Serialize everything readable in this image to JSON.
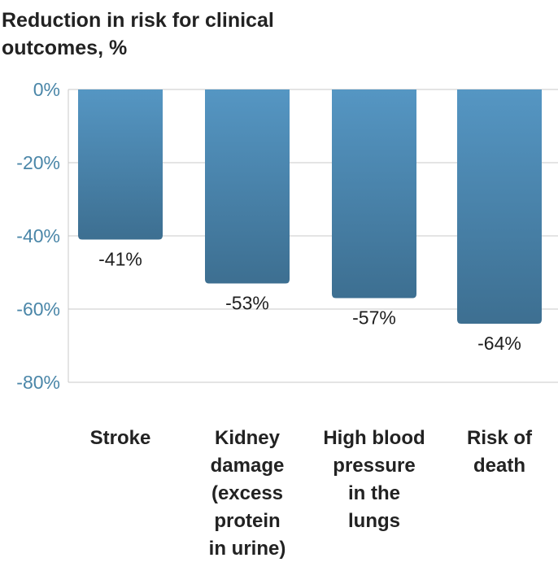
{
  "chart_data": {
    "type": "bar",
    "title": "Reduction in risk for clinical outcomes, %",
    "categories": [
      "Stroke",
      "Kidney damage (excess protein in urine)",
      "High blood pressure in the lungs",
      "Risk of death"
    ],
    "category_lines": [
      [
        "Stroke"
      ],
      [
        "Kidney",
        "damage",
        "(excess",
        "protein",
        "in urine)"
      ],
      [
        "High blood",
        "pressure",
        "in the",
        "lungs"
      ],
      [
        "Risk of",
        "death"
      ]
    ],
    "values": [
      -41,
      -53,
      -57,
      -64
    ],
    "data_labels": [
      "-41%",
      "-53%",
      "-57%",
      "-64%"
    ],
    "ylim": [
      -80,
      0
    ],
    "yticks": [
      0,
      -20,
      -40,
      -60,
      -80
    ],
    "ytick_labels": [
      "0%",
      "-20%",
      "-40%",
      "-60%",
      "-80%"
    ],
    "grid": true,
    "colors": {
      "bar_top": "#5596c3",
      "bar_bottom": "#3d6f91",
      "tick": "#4a86a8",
      "grid": "#c8c8c8"
    }
  }
}
